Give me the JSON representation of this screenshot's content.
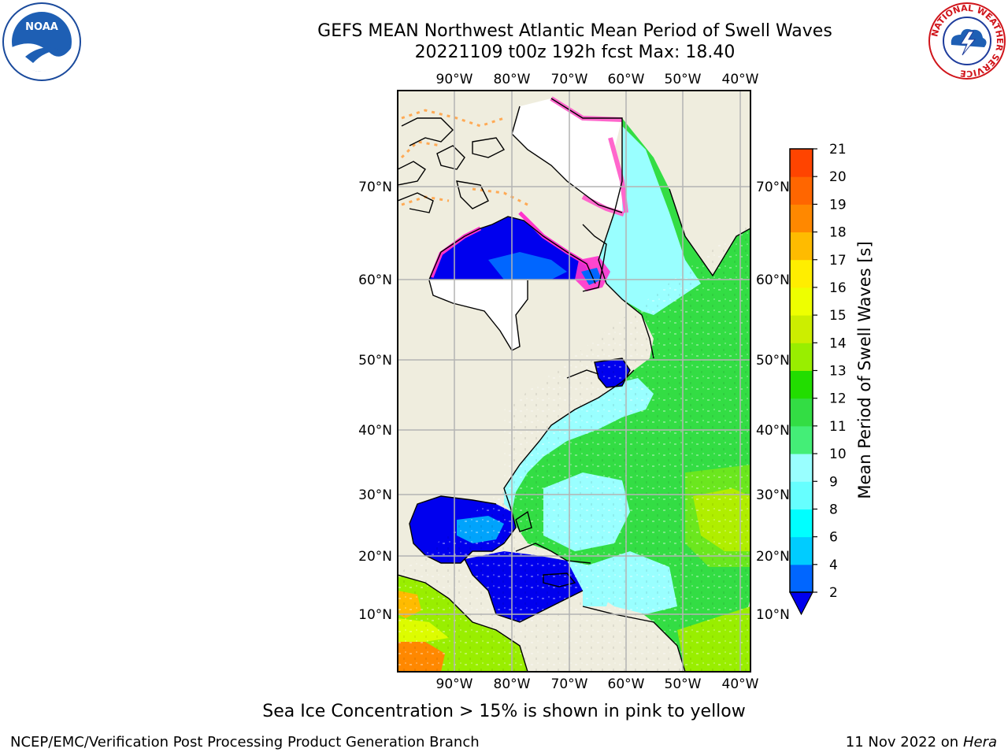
{
  "header": {
    "title_line1": "GEFS MEAN Northwest Atlantic Mean Period of Swell Waves",
    "title_line2": "20221109 t00z 192h fcst   Max: 18.40"
  },
  "logos": {
    "left": "noaa-logo",
    "right": "nws-logo",
    "left_text": "NOAA",
    "right_text": "NATIONAL WEATHER SERVICE"
  },
  "map": {
    "projection": "mercator",
    "lon_range": [
      -100,
      -38
    ],
    "lat_range": [
      2,
      80
    ],
    "lon_labels": [
      "90°W",
      "80°W",
      "70°W",
      "60°W",
      "50°W",
      "40°W"
    ],
    "lat_labels": [
      "70°N",
      "60°N",
      "50°N",
      "40°N",
      "30°N",
      "20°N",
      "10°N"
    ],
    "colors": {
      "land": "#efedde",
      "ice": "#ffffff",
      "grid": "#b4b4b4",
      "coast": "#000000"
    }
  },
  "colorbar": {
    "label": "Mean Period of Swell Waves [s]",
    "ticks": [
      "2",
      "4",
      "6",
      "8",
      "9",
      "10",
      "11",
      "12",
      "13",
      "14",
      "15",
      "16",
      "17",
      "18",
      "19",
      "20",
      "21"
    ],
    "colors": [
      "#0066ff",
      "#00ccff",
      "#00ffff",
      "#66ffff",
      "#99ffff",
      "#44ee77",
      "#33dd44",
      "#22dd00",
      "#99ee00",
      "#ccee00",
      "#eeff00",
      "#ffee00",
      "#ffbb00",
      "#ff8800",
      "#ff6600",
      "#ff4400",
      "#ff0000"
    ],
    "under_color": "#0000ee"
  },
  "footer": {
    "note": "Sea Ice Concentration > 15% is shown in pink to yellow",
    "credit": "NCEP/EMC/Verification Post Processing Product Generation Branch",
    "date": "11 Nov 2022 on",
    "host": "Hera"
  }
}
